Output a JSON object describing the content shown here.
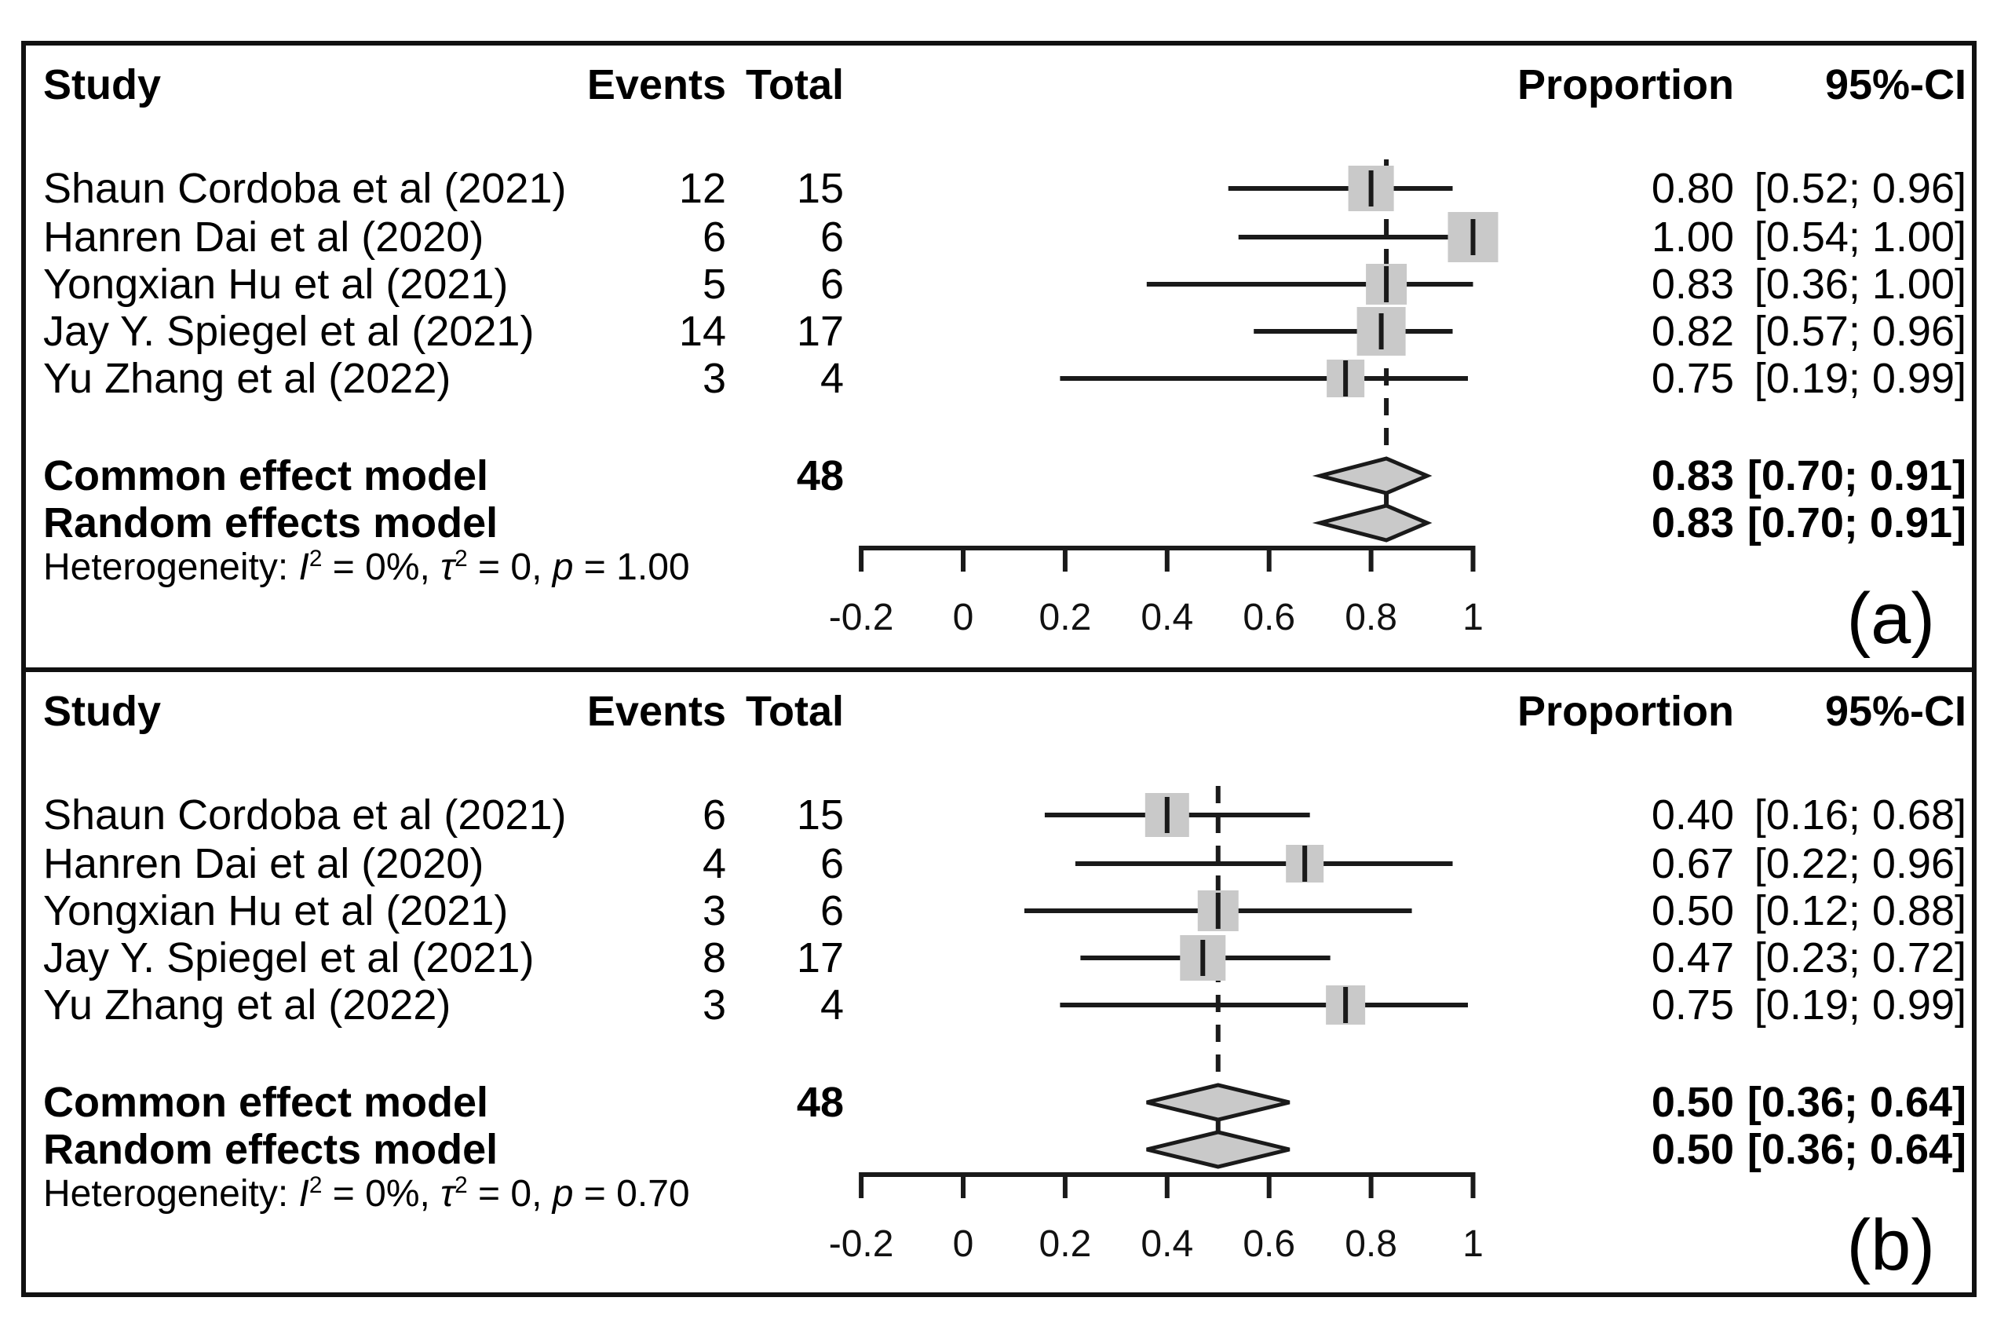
{
  "figure_label": "meta-analysis forest plots",
  "colors": {
    "line": "#1a1a1a",
    "square_fill": "#c9c9c9",
    "diamond_fill": "#c9c9c9",
    "border": "#111111",
    "background": "#ffffff"
  },
  "columns": {
    "study": "Study",
    "events": "Events",
    "total": "Total",
    "proportion": "Proportion",
    "ci": "95%-CI"
  },
  "chart_data": [
    {
      "type": "forest",
      "panel_label": "(a)",
      "xlabel": "",
      "xlim": [
        -0.2,
        1
      ],
      "grid": false,
      "axis": {
        "values": [
          -0.2,
          0,
          0.2,
          0.4,
          0.6,
          0.8,
          1
        ],
        "ticks": [
          "-0.2",
          "0",
          "0.2",
          "0.4",
          "0.6",
          "0.8",
          "1"
        ],
        "center_line": 0.83
      },
      "studies": [
        {
          "name": "Shaun Cordoba et al (2021)",
          "events": 12,
          "total": 15,
          "proportion": 0.8,
          "ci_low": 0.52,
          "ci_high": 0.96,
          "proportion_text": "0.80",
          "ci_text": "[0.52; 0.96]",
          "square": 58
        },
        {
          "name": "Hanren Dai et al (2020)",
          "events": 6,
          "total": 6,
          "proportion": 1.0,
          "ci_low": 0.54,
          "ci_high": 1.0,
          "proportion_text": "1.00",
          "ci_text": "[0.54; 1.00]",
          "square": 64
        },
        {
          "name": "Yongxian Hu et al (2021)",
          "events": 5,
          "total": 6,
          "proportion": 0.83,
          "ci_low": 0.36,
          "ci_high": 1.0,
          "proportion_text": "0.83",
          "ci_text": "[0.36; 1.00]",
          "square": 52
        },
        {
          "name": "Jay Y. Spiegel et al (2021)",
          "events": 14,
          "total": 17,
          "proportion": 0.82,
          "ci_low": 0.57,
          "ci_high": 0.96,
          "proportion_text": "0.82",
          "ci_text": "[0.57; 0.96]",
          "square": 62
        },
        {
          "name": "Yu Zhang et al (2022)",
          "events": 3,
          "total": 4,
          "proportion": 0.75,
          "ci_low": 0.19,
          "ci_high": 0.99,
          "proportion_text": "0.75",
          "ci_text": "[0.19; 0.99]",
          "square": 48
        }
      ],
      "common": {
        "label": "Common effect model",
        "total": 48,
        "proportion": 0.83,
        "ci_low": 0.7,
        "ci_high": 0.91,
        "proportion_text": "0.83",
        "ci_text": "[0.70; 0.91]"
      },
      "random": {
        "label": "Random effects model",
        "proportion": 0.83,
        "ci_low": 0.7,
        "ci_high": 0.91,
        "proportion_text": "0.83",
        "ci_text": "[0.70; 0.91]"
      },
      "heterogeneity": {
        "prefix": "Heterogeneity: ",
        "i_sym": "I",
        "sup": "2",
        "i_eq": " = 0%, ",
        "tau_sym": "τ",
        "tau_eq": " = 0, ",
        "p_sym": "p",
        "p_eq": " = 1.00"
      }
    },
    {
      "type": "forest",
      "panel_label": "(b)",
      "xlabel": "",
      "xlim": [
        -0.2,
        1
      ],
      "grid": false,
      "axis": {
        "values": [
          -0.2,
          0,
          0.2,
          0.4,
          0.6,
          0.8,
          1
        ],
        "ticks": [
          "-0.2",
          "0",
          "0.2",
          "0.4",
          "0.6",
          "0.8",
          "1"
        ],
        "center_line": 0.5
      },
      "studies": [
        {
          "name": "Shaun Cordoba et al (2021)",
          "events": 6,
          "total": 15,
          "proportion": 0.4,
          "ci_low": 0.16,
          "ci_high": 0.68,
          "proportion_text": "0.40",
          "ci_text": "[0.16; 0.68]",
          "square": 56
        },
        {
          "name": "Hanren Dai et al (2020)",
          "events": 4,
          "total": 6,
          "proportion": 0.67,
          "ci_low": 0.22,
          "ci_high": 0.96,
          "proportion_text": "0.67",
          "ci_text": "[0.22; 0.96]",
          "square": 48
        },
        {
          "name": "Yongxian Hu et al (2021)",
          "events": 3,
          "total": 6,
          "proportion": 0.5,
          "ci_low": 0.12,
          "ci_high": 0.88,
          "proportion_text": "0.50",
          "ci_text": "[0.12; 0.88]",
          "square": 52
        },
        {
          "name": "Jay Y. Spiegel et al (2021)",
          "events": 8,
          "total": 17,
          "proportion": 0.47,
          "ci_low": 0.23,
          "ci_high": 0.72,
          "proportion_text": "0.47",
          "ci_text": "[0.23; 0.72]",
          "square": 58
        },
        {
          "name": "Yu Zhang et al (2022)",
          "events": 3,
          "total": 4,
          "proportion": 0.75,
          "ci_low": 0.19,
          "ci_high": 0.99,
          "proportion_text": "0.75",
          "ci_text": "[0.19; 0.99]",
          "square": 50
        }
      ],
      "common": {
        "label": "Common effect model",
        "total": 48,
        "proportion": 0.5,
        "ci_low": 0.36,
        "ci_high": 0.64,
        "proportion_text": "0.50",
        "ci_text": "[0.36; 0.64]"
      },
      "random": {
        "label": "Random effects model",
        "proportion": 0.5,
        "ci_low": 0.36,
        "ci_high": 0.64,
        "proportion_text": "0.50",
        "ci_text": "[0.36; 0.64]"
      },
      "heterogeneity": {
        "prefix": "Heterogeneity: ",
        "i_sym": "I",
        "sup": "2",
        "i_eq": " = 0%, ",
        "tau_sym": "τ",
        "tau_eq": " = 0, ",
        "p_sym": "p",
        "p_eq": " = 0.70"
      }
    }
  ]
}
